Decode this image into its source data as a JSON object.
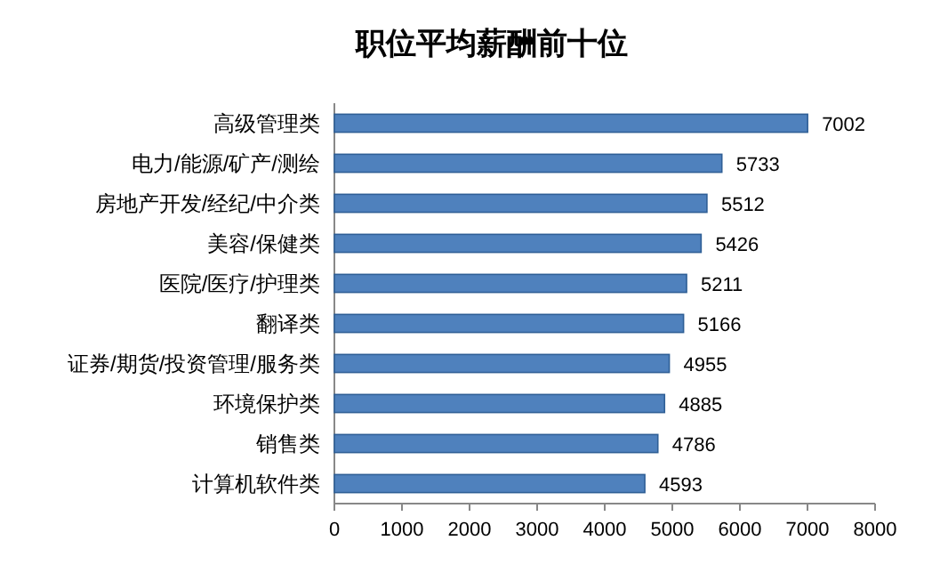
{
  "chart_data": {
    "type": "bar",
    "orientation": "horizontal",
    "title": "职位平均薪酬前十位",
    "categories": [
      "高级管理类",
      "电力/能源/矿产/测绘",
      "房地产开发/经纪/中介类",
      "美容/保健类",
      "医院/医疗/护理类",
      "翻译类",
      "证券/期货/投资管理/服务类",
      "环境保护类",
      "销售类",
      "计算机软件类"
    ],
    "values": [
      7002,
      5733,
      5512,
      5426,
      5211,
      5166,
      4955,
      4885,
      4786,
      4593
    ],
    "color": "#4f81bd",
    "data_labels": true,
    "xlim": [
      0,
      8000
    ],
    "xticks": [
      0,
      1000,
      2000,
      3000,
      4000,
      5000,
      6000,
      7000,
      8000
    ],
    "grid": false
  }
}
